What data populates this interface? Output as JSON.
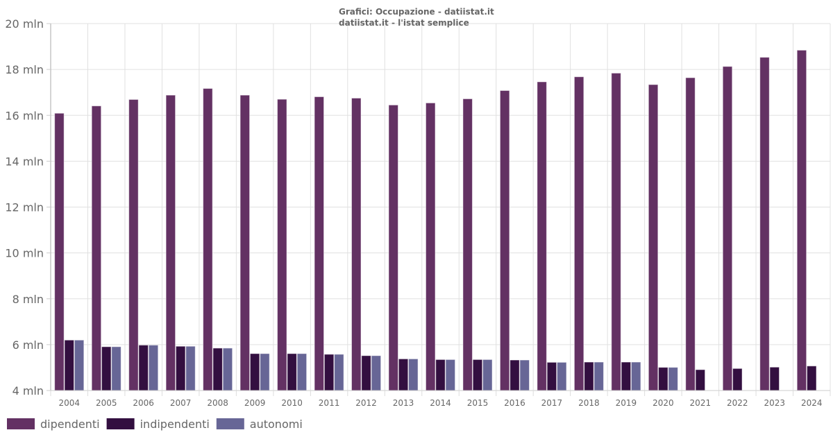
{
  "chart_data": {
    "type": "bar",
    "title": "Grafici: Occupazione - datiistat.it",
    "subtitle": "datiistat.it - l'istat semplice",
    "xlabel": "",
    "ylabel": "",
    "ylim": [
      4,
      20
    ],
    "y_unit_suffix": " mln",
    "y_ticks": [
      "4 mln",
      "6 mln",
      "8 mln",
      "10 mln",
      "12 mln",
      "14 mln",
      "16 mln",
      "18 mln",
      "20 mln"
    ],
    "y_tick_values": [
      4,
      6,
      8,
      10,
      12,
      14,
      16,
      18,
      20
    ],
    "grid": true,
    "legend_position": "bottom-left",
    "categories": [
      "2004",
      "2005",
      "2006",
      "2007",
      "2008",
      "2009",
      "2010",
      "2011",
      "2012",
      "2013",
      "2014",
      "2015",
      "2016",
      "2017",
      "2018",
      "2019",
      "2020",
      "2021",
      "2022",
      "2023",
      "2024"
    ],
    "series": [
      {
        "name": "dipendenti",
        "color": "#633163",
        "values": [
          16.09,
          16.41,
          16.69,
          16.88,
          17.17,
          16.88,
          16.7,
          16.81,
          16.75,
          16.45,
          16.54,
          16.72,
          17.08,
          17.46,
          17.68,
          17.84,
          17.34,
          17.64,
          18.13,
          18.53,
          18.84
        ]
      },
      {
        "name": "indipendenti",
        "color": "#330f40",
        "values": [
          6.2,
          5.91,
          5.98,
          5.93,
          5.85,
          5.61,
          5.61,
          5.58,
          5.52,
          5.38,
          5.35,
          5.35,
          5.33,
          5.23,
          5.24,
          5.24,
          5.01,
          4.91,
          4.96,
          5.02,
          5.07
        ]
      },
      {
        "name": "autonomi",
        "color": "#676696",
        "values": [
          6.2,
          5.91,
          5.98,
          5.93,
          5.85,
          5.61,
          5.61,
          5.58,
          5.52,
          5.38,
          5.35,
          5.35,
          5.33,
          5.23,
          5.24,
          5.24,
          5.01,
          null,
          null,
          null,
          null
        ]
      }
    ]
  }
}
